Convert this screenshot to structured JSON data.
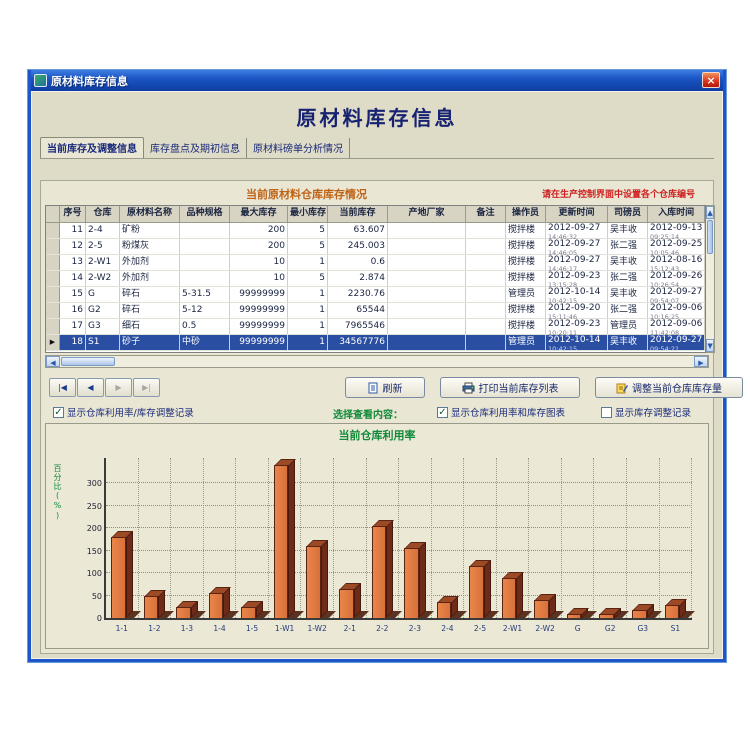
{
  "window": {
    "title": "原材料库存信息",
    "close_label": "×"
  },
  "header": {
    "title": "原材料库存信息"
  },
  "tabs": [
    {
      "label": "当前库存及调整信息",
      "active": true
    },
    {
      "label": "库存盘点及期初信息",
      "active": false
    },
    {
      "label": "原材料磅单分析情况",
      "active": false
    }
  ],
  "section": {
    "caption": "当前原材料仓库库存情况",
    "notice": "请在生产控制界面中设置各个仓库编号"
  },
  "table": {
    "columns": [
      "序号",
      "仓库",
      "原材料名称",
      "品种规格",
      "最大库存",
      "最小库存",
      "当前库存",
      "产地厂家",
      "备注",
      "操作员",
      "更新时间",
      "司磅员",
      "入库时间"
    ],
    "rows": [
      {
        "no": "11",
        "warehouse": "2-4",
        "material": "矿粉",
        "spec": "",
        "max": "200",
        "min": "5",
        "current": "63.607",
        "factory": "",
        "remark": "",
        "operator": "搅拌楼",
        "update_date": "2012-09-27",
        "update_time": "14:46:32",
        "weigher": "吴丰收",
        "entry_date": "2012-09-13",
        "entry_time": "09:25:14",
        "selected": false
      },
      {
        "no": "12",
        "warehouse": "2-5",
        "material": "粉煤灰",
        "spec": "",
        "max": "200",
        "min": "5",
        "current": "245.003",
        "factory": "",
        "remark": "",
        "operator": "搅拌楼",
        "update_date": "2012-09-27",
        "update_time": "14:46:05",
        "weigher": "张二强",
        "entry_date": "2012-09-25",
        "entry_time": "10:05:46",
        "selected": false
      },
      {
        "no": "13",
        "warehouse": "2-W1",
        "material": "外加剂",
        "spec": "",
        "max": "10",
        "min": "1",
        "current": "0.6",
        "factory": "",
        "remark": "",
        "operator": "搅拌楼",
        "update_date": "2012-09-27",
        "update_time": "14:46:17",
        "weigher": "吴丰收",
        "entry_date": "2012-08-16",
        "entry_time": "15:12:43",
        "selected": false
      },
      {
        "no": "14",
        "warehouse": "2-W2",
        "material": "外加剂",
        "spec": "",
        "max": "10",
        "min": "5",
        "current": "2.874",
        "factory": "",
        "remark": "",
        "operator": "搅拌楼",
        "update_date": "2012-09-23",
        "update_time": "13:15:28",
        "weigher": "张二强",
        "entry_date": "2012-09-26",
        "entry_time": "10:26:54",
        "selected": false
      },
      {
        "no": "15",
        "warehouse": "G",
        "material": "碎石",
        "spec": "5-31.5",
        "max": "99999999",
        "min": "1",
        "current": "2230.76",
        "factory": "",
        "remark": "",
        "operator": "管理员",
        "update_date": "2012-10-14",
        "update_time": "10:42:15",
        "weigher": "吴丰收",
        "entry_date": "2012-09-27",
        "entry_time": "09:54:07",
        "selected": false
      },
      {
        "no": "16",
        "warehouse": "G2",
        "material": "碎石",
        "spec": "5-12",
        "max": "99999999",
        "min": "1",
        "current": "65544",
        "factory": "",
        "remark": "",
        "operator": "搅拌楼",
        "update_date": "2012-09-20",
        "update_time": "15:11:46",
        "weigher": "张二强",
        "entry_date": "2012-09-06",
        "entry_time": "10:16:25",
        "selected": false
      },
      {
        "no": "17",
        "warehouse": "G3",
        "material": "细石",
        "spec": "0.5",
        "max": "99999999",
        "min": "1",
        "current": "7965546",
        "factory": "",
        "remark": "",
        "operator": "搅拌楼",
        "update_date": "2012-09-23",
        "update_time": "10:20:11",
        "weigher": "管理员",
        "entry_date": "2012-09-06",
        "entry_time": "11:42:08",
        "selected": false
      },
      {
        "no": "18",
        "warehouse": "S1",
        "material": "砂子",
        "spec": "中砂",
        "max": "99999999",
        "min": "1",
        "current": "34567776",
        "factory": "",
        "remark": "",
        "operator": "管理员",
        "update_date": "2012-10-14",
        "update_time": "10:42:15",
        "weigher": "吴丰收",
        "entry_date": "2012-09-27",
        "entry_time": "09:54:21",
        "selected": true
      }
    ]
  },
  "toolbar": {
    "nav_first": "|◀",
    "nav_prev": "◀",
    "nav_next": "▶",
    "nav_last": "▶|",
    "refresh": "刷新",
    "print": "打印当前库存列表",
    "adjust": "调整当前仓库库存量"
  },
  "filters": {
    "cb_left_label": "显示仓库利用率/库存调整记录",
    "cb_left_checked": "✓",
    "select_label": "选择查看内容：",
    "cb_chart_label": "显示仓库利用率和库存图表",
    "cb_chart_checked": "✓",
    "cb_adjust_label": "显示库存调整记录",
    "cb_adjust_checked": ""
  },
  "chart_data": {
    "type": "bar",
    "title": "当前仓库利用率",
    "ylabel": "百分比(%)",
    "xlabel": "",
    "categories": [
      "1-1",
      "1-2",
      "1-3",
      "1-4",
      "1-5",
      "1-W1",
      "1-W2",
      "2-1",
      "2-2",
      "2-3",
      "2-4",
      "2-5",
      "2-W1",
      "2-W2",
      "G",
      "G2",
      "G3",
      "S1"
    ],
    "values": [
      180,
      50,
      25,
      55,
      25,
      340,
      160,
      65,
      205,
      155,
      35,
      115,
      90,
      40,
      10,
      10,
      18,
      30
    ],
    "yticks": [
      0,
      50,
      100,
      150,
      200,
      250,
      300
    ],
    "ylim": [
      0,
      360
    ],
    "grid": true,
    "legend": "none",
    "bar_color": "#dd7a3e"
  },
  "colors": {
    "titlebar": "#1b55c4",
    "selected_row": "#2a4fa2",
    "bar_front": "#dd7a3e",
    "caption_orange": "#bf6316",
    "notice_red": "#cf1f1f",
    "green_accent": "#128a3a",
    "navy_text": "#1a2a7a"
  }
}
